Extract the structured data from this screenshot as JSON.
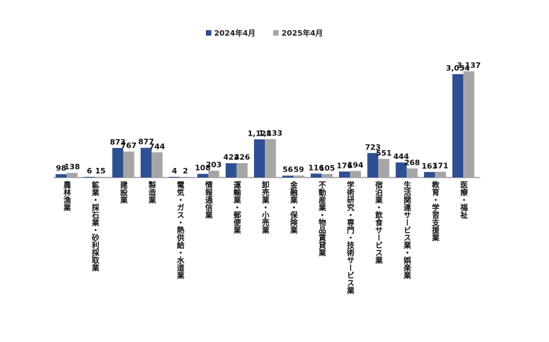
{
  "colors": {
    "s2024": "#2f4f93",
    "s2025": "#a6a6a6",
    "axis": "#666666"
  },
  "chart_data": {
    "type": "bar",
    "title": "",
    "xlabel": "",
    "ylabel": "",
    "legend_position": "top",
    "grid": false,
    "ylim": [
      0,
      3300
    ],
    "categories": [
      "農林漁業",
      "鉱業・採石業・砂利採取業",
      "建設業",
      "製造業",
      "電気・ガス・熱供給・水道業",
      "情報通信業",
      "運輸業・郵便業",
      "卸売業・小売業",
      "金融業・保険業",
      "不動産業・物品賃貸業",
      "学術研究・専門・技術サービス業",
      "宿泊業・飲食サービス業",
      "生活関連サービス業・娯楽業",
      "教育・学習支援業",
      "医療・福祉"
    ],
    "series": [
      {
        "name": "2024年4月",
        "values": [
          98,
          6,
          873,
          877,
          4,
          108,
          422,
          1128,
          56,
          116,
          176,
          723,
          444,
          163,
          3054
        ],
        "labels": [
          "98",
          "6",
          "873",
          "877",
          "4",
          "108",
          "422",
          "1,128",
          "56",
          "116",
          "176",
          "723",
          "444",
          "163",
          "3,054"
        ]
      },
      {
        "name": "2025年4月",
        "values": [
          138,
          15,
          767,
          744,
          2,
          203,
          426,
          1133,
          59,
          105,
          194,
          551,
          268,
          171,
          3137
        ],
        "labels": [
          "138",
          "15",
          "767",
          "744",
          "2",
          "203",
          "426",
          "1,133",
          "59",
          "105",
          "194",
          "551",
          "268",
          "171",
          "3,137"
        ]
      }
    ]
  }
}
